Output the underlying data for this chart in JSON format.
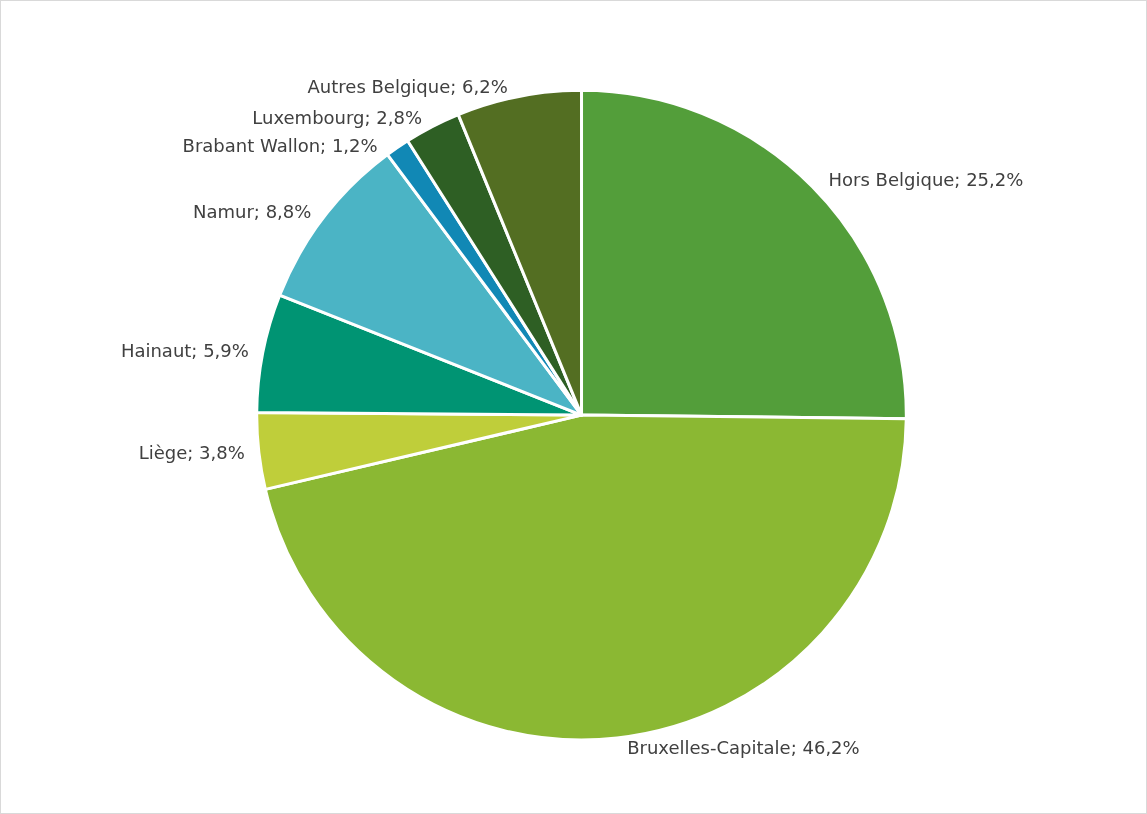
{
  "chart_data": {
    "type": "pie",
    "categories": [
      "Hors Belgique",
      "Bruxelles-Capitale",
      "Liège",
      "Hainaut",
      "Namur",
      "Brabant Wallon",
      "Luxembourg",
      "Autres Belgique"
    ],
    "values": [
      25.2,
      46.2,
      3.8,
      5.9,
      8.8,
      1.2,
      2.8,
      6.2
    ],
    "colors": [
      "#539e3a",
      "#8bb833",
      "#bfce3a",
      "#009473",
      "#4bb4c5",
      "#1188b5",
      "#2e5f24",
      "#536e22"
    ],
    "value_labels": [
      "25,2%",
      "46,2%",
      "3,8%",
      "5,9%",
      "8,8%",
      "1,2%",
      "2,8%",
      "6,2%"
    ],
    "legend": false
  }
}
